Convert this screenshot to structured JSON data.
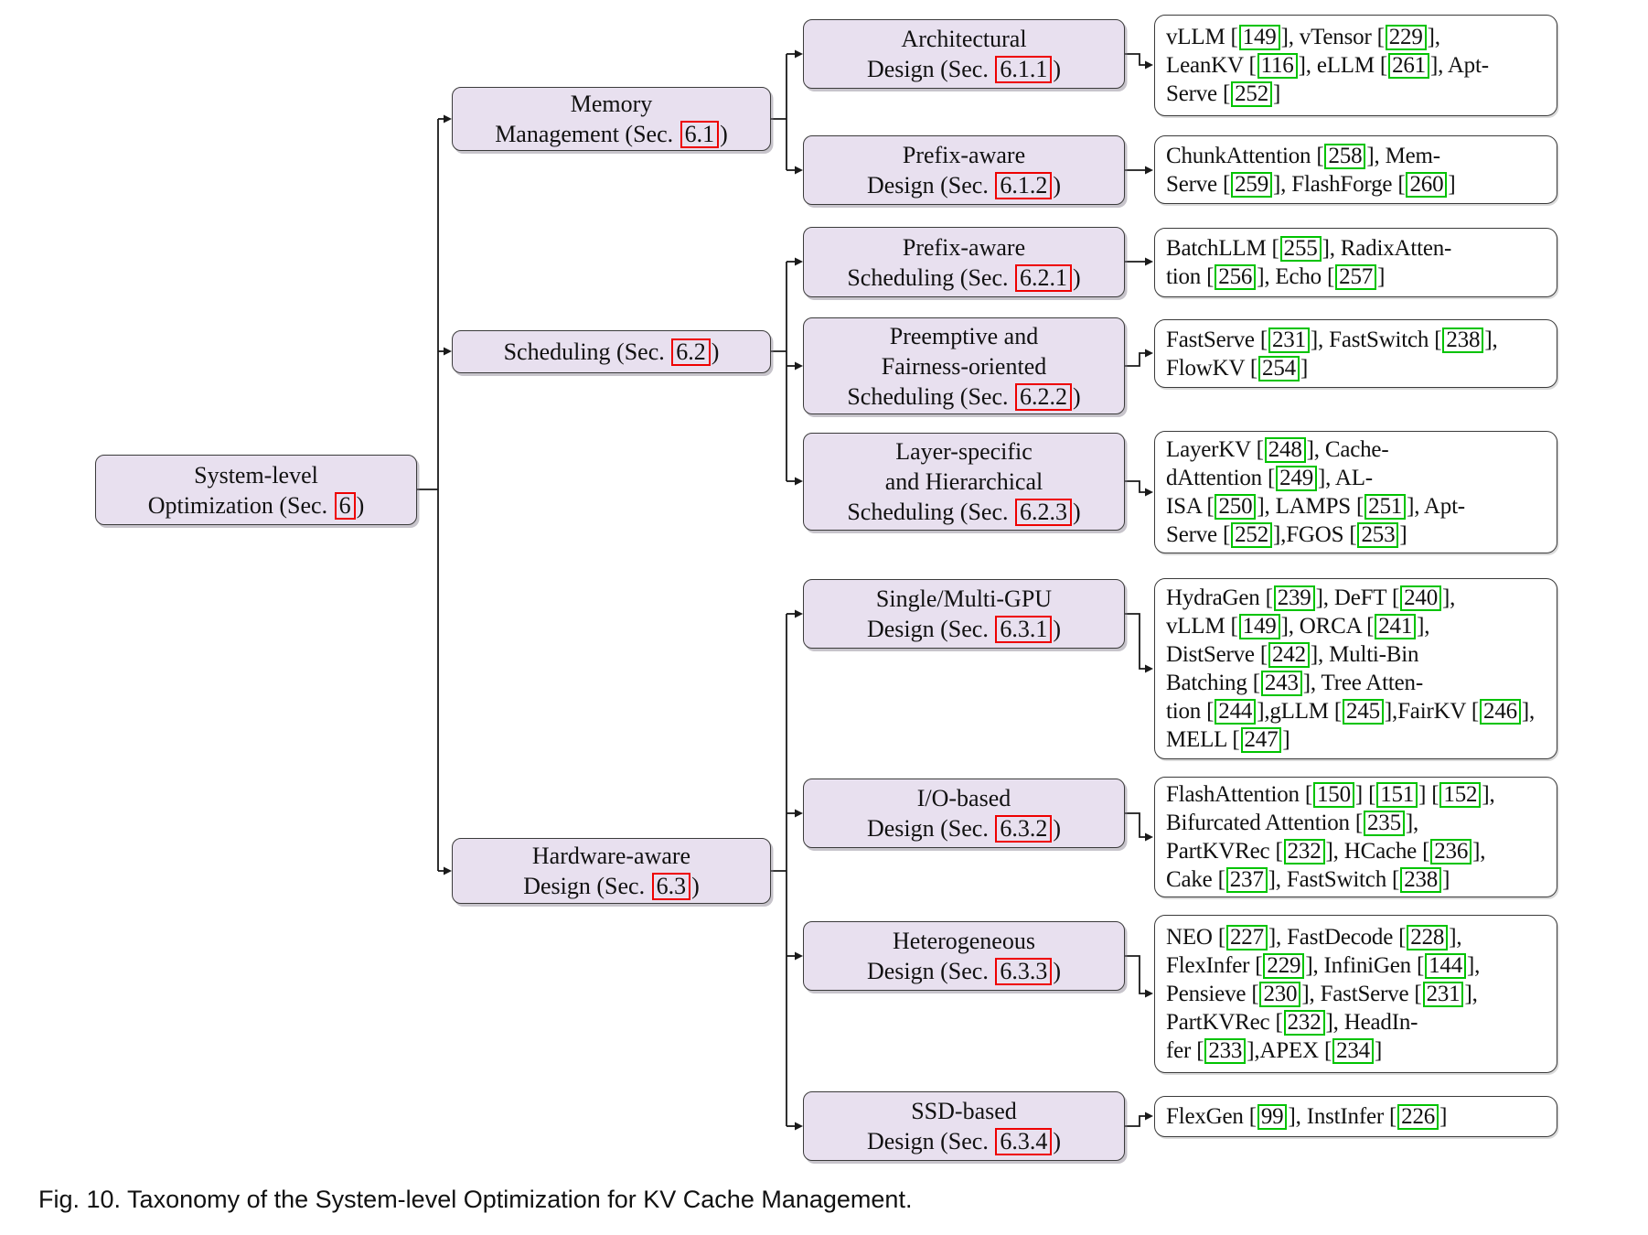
{
  "figure": {
    "caption": "Fig. 10. Taxonomy of the System-level Optimization for KV Cache Management."
  },
  "colors": {
    "node_fill": "#e8e0ef",
    "node_border": "#3b3b3b",
    "section_ref_box": "#ee0000",
    "citation_ref_box": "#00c300",
    "connector_line": "#1a1a1a"
  },
  "nodes": [
    {
      "key": "root",
      "name": "system-level-optimization",
      "lines": [
        "System-level"
      ],
      "sec_pre": "Optimization (Sec.",
      "sec": "6"
    },
    {
      "key": "mem",
      "name": "memory-management",
      "lines": [
        "Memory"
      ],
      "sec_pre": "Management (Sec.",
      "sec": "6.1"
    },
    {
      "key": "sched",
      "name": "scheduling",
      "lines": [],
      "sec_pre": "Scheduling (Sec.",
      "sec": "6.2"
    },
    {
      "key": "hw",
      "name": "hardware-aware-design",
      "lines": [
        "Hardware-aware"
      ],
      "sec_pre": "Design (Sec.",
      "sec": "6.3"
    },
    {
      "key": "n1",
      "name": "architectural-design",
      "lines": [
        "Architectural"
      ],
      "sec_pre": "Design (Sec.",
      "sec": "6.1.1"
    },
    {
      "key": "n2",
      "name": "prefix-aware-design",
      "lines": [
        "Prefix-aware"
      ],
      "sec_pre": "Design (Sec.",
      "sec": "6.1.2"
    },
    {
      "key": "n3",
      "name": "prefix-aware-scheduling",
      "lines": [
        "Prefix-aware"
      ],
      "sec_pre": "Scheduling (Sec.",
      "sec": "6.2.1"
    },
    {
      "key": "n4",
      "name": "preemptive-fairness-oriented-scheduling",
      "lines": [
        "Preemptive and",
        "Fairness-oriented"
      ],
      "sec_pre": "Scheduling (Sec.",
      "sec": "6.2.2"
    },
    {
      "key": "n5",
      "name": "layer-specific-hierarchical-scheduling",
      "lines": [
        "Layer-specific",
        "and Hierarchical"
      ],
      "sec_pre": "Scheduling (Sec.",
      "sec": "6.2.3"
    },
    {
      "key": "n6",
      "name": "single-multi-gpu-design",
      "lines": [
        "Single/Multi-GPU"
      ],
      "sec_pre": "Design (Sec.",
      "sec": "6.3.1"
    },
    {
      "key": "n7",
      "name": "io-based-design",
      "lines": [
        "I/O-based"
      ],
      "sec_pre": "Design (Sec.",
      "sec": "6.3.2"
    },
    {
      "key": "n8",
      "name": "heterogeneous-design",
      "lines": [
        "Heterogeneous"
      ],
      "sec_pre": "Design (Sec.",
      "sec": "6.3.3"
    },
    {
      "key": "n9",
      "name": "ssd-based-design",
      "lines": [
        "SSD-based"
      ],
      "sec_pre": "Design (Sec.",
      "sec": "6.3.4"
    }
  ],
  "leaves": [
    {
      "key": "l1",
      "name": "architectural-design-citations",
      "lines": [
        [
          {
            "t": "vLLM ["
          },
          {
            "c": "149"
          },
          {
            "t": "], vTensor ["
          },
          {
            "c": "229"
          },
          {
            "t": "],"
          }
        ],
        [
          {
            "t": "LeanKV ["
          },
          {
            "c": "116"
          },
          {
            "t": "], eLLM ["
          },
          {
            "c": "261"
          },
          {
            "t": "], Apt-"
          }
        ],
        [
          {
            "t": "Serve ["
          },
          {
            "c": "252"
          },
          {
            "t": "]"
          }
        ]
      ]
    },
    {
      "key": "l2",
      "name": "prefix-aware-design-citations",
      "lines": [
        [
          {
            "t": "ChunkAttention ["
          },
          {
            "c": "258"
          },
          {
            "t": "], Mem-"
          }
        ],
        [
          {
            "t": "Serve ["
          },
          {
            "c": "259"
          },
          {
            "t": "], FlashForge ["
          },
          {
            "c": "260"
          },
          {
            "t": "]"
          }
        ]
      ]
    },
    {
      "key": "l3",
      "name": "prefix-aware-scheduling-citations",
      "lines": [
        [
          {
            "t": "BatchLLM ["
          },
          {
            "c": "255"
          },
          {
            "t": "], RadixAtten-"
          }
        ],
        [
          {
            "t": "tion ["
          },
          {
            "c": "256"
          },
          {
            "t": "], Echo ["
          },
          {
            "c": "257"
          },
          {
            "t": "]"
          }
        ]
      ]
    },
    {
      "key": "l4",
      "name": "preemptive-fairness-scheduling-citations",
      "lines": [
        [
          {
            "t": "FastServe ["
          },
          {
            "c": "231"
          },
          {
            "t": "], FastSwitch ["
          },
          {
            "c": "238"
          },
          {
            "t": "],"
          }
        ],
        [
          {
            "t": "FlowKV ["
          },
          {
            "c": "254"
          },
          {
            "t": "]"
          }
        ]
      ]
    },
    {
      "key": "l5",
      "name": "layer-specific-hierarchical-scheduling-citations",
      "lines": [
        [
          {
            "t": "LayerKV ["
          },
          {
            "c": "248"
          },
          {
            "t": "], Cache-"
          }
        ],
        [
          {
            "t": "dAttention ["
          },
          {
            "c": "249"
          },
          {
            "t": "], AL-"
          }
        ],
        [
          {
            "t": "ISA ["
          },
          {
            "c": "250"
          },
          {
            "t": "], LAMPS ["
          },
          {
            "c": "251"
          },
          {
            "t": "], Apt-"
          }
        ],
        [
          {
            "t": "Serve ["
          },
          {
            "c": "252"
          },
          {
            "t": "],FGOS ["
          },
          {
            "c": "253"
          },
          {
            "t": "]"
          }
        ]
      ]
    },
    {
      "key": "l6",
      "name": "single-multi-gpu-design-citations",
      "lines": [
        [
          {
            "t": "HydraGen ["
          },
          {
            "c": "239"
          },
          {
            "t": "], DeFT ["
          },
          {
            "c": "240"
          },
          {
            "t": "],"
          }
        ],
        [
          {
            "t": "vLLM ["
          },
          {
            "c": "149"
          },
          {
            "t": "], ORCA ["
          },
          {
            "c": "241"
          },
          {
            "t": "],"
          }
        ],
        [
          {
            "t": "DistServe ["
          },
          {
            "c": "242"
          },
          {
            "t": "], Multi-Bin"
          }
        ],
        [
          {
            "t": "Batching ["
          },
          {
            "c": "243"
          },
          {
            "t": "], Tree Atten-"
          }
        ],
        [
          {
            "t": "tion ["
          },
          {
            "c": "244"
          },
          {
            "t": "],gLLM ["
          },
          {
            "c": "245"
          },
          {
            "t": "],FairKV ["
          },
          {
            "c": "246"
          },
          {
            "t": "],"
          }
        ],
        [
          {
            "t": "MELL ["
          },
          {
            "c": "247"
          },
          {
            "t": "]"
          }
        ]
      ]
    },
    {
      "key": "l7",
      "name": "io-based-design-citations",
      "lines": [
        [
          {
            "t": "FlashAttention ["
          },
          {
            "c": "150"
          },
          {
            "t": "] ["
          },
          {
            "c": "151"
          },
          {
            "t": "] ["
          },
          {
            "c": "152"
          },
          {
            "t": "],"
          }
        ],
        [
          {
            "t": "Bifurcated Attention ["
          },
          {
            "c": "235"
          },
          {
            "t": "],"
          }
        ],
        [
          {
            "t": "PartKVRec ["
          },
          {
            "c": "232"
          },
          {
            "t": "], HCache ["
          },
          {
            "c": "236"
          },
          {
            "t": "],"
          }
        ],
        [
          {
            "t": "Cake ["
          },
          {
            "c": "237"
          },
          {
            "t": "], FastSwitch ["
          },
          {
            "c": "238"
          },
          {
            "t": "]"
          }
        ]
      ]
    },
    {
      "key": "l8",
      "name": "heterogeneous-design-citations",
      "lines": [
        [
          {
            "t": "NEO ["
          },
          {
            "c": "227"
          },
          {
            "t": "], FastDecode ["
          },
          {
            "c": "228"
          },
          {
            "t": "],"
          }
        ],
        [
          {
            "t": "FlexInfer ["
          },
          {
            "c": "229"
          },
          {
            "t": "], InfiniGen ["
          },
          {
            "c": "144"
          },
          {
            "t": "],"
          }
        ],
        [
          {
            "t": "Pensieve ["
          },
          {
            "c": "230"
          },
          {
            "t": "], FastServe ["
          },
          {
            "c": "231"
          },
          {
            "t": "],"
          }
        ],
        [
          {
            "t": "PartKVRec ["
          },
          {
            "c": "232"
          },
          {
            "t": "], HeadIn-"
          }
        ],
        [
          {
            "t": "fer ["
          },
          {
            "c": "233"
          },
          {
            "t": "],APEX ["
          },
          {
            "c": "234"
          },
          {
            "t": "]"
          }
        ]
      ]
    },
    {
      "key": "l9",
      "name": "ssd-based-design-citations",
      "lines": [
        [
          {
            "t": "FlexGen ["
          },
          {
            "c": "99"
          },
          {
            "t": "], InstInfer ["
          },
          {
            "c": "226"
          },
          {
            "t": "]"
          }
        ]
      ]
    }
  ]
}
